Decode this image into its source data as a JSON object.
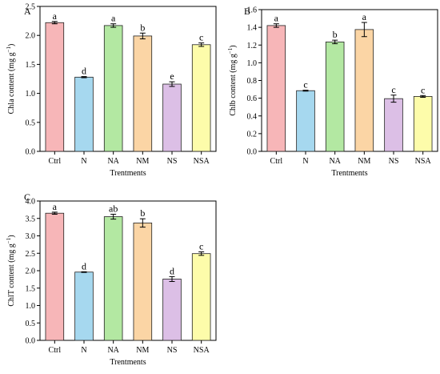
{
  "figure": {
    "colors": {
      "Ctrl": "#f7b6b8",
      "N": "#a6d8ef",
      "NA": "#b3e8a2",
      "NM": "#fbd5a5",
      "NS": "#dcbfe6",
      "NSA": "#fdfcaa",
      "edge": "#222222"
    }
  },
  "chart_data": [
    {
      "panel": "A",
      "type": "bar",
      "categories": [
        "Ctrl",
        "N",
        "NA",
        "NM",
        "NS",
        "NSA"
      ],
      "values": [
        2.22,
        1.28,
        2.17,
        1.99,
        1.16,
        1.84
      ],
      "errors": [
        0.02,
        0.01,
        0.03,
        0.05,
        0.04,
        0.03
      ],
      "letters": [
        "a",
        "d",
        "a",
        "b",
        "e",
        "c"
      ],
      "xlabel": "Trentments",
      "ylabel": "Chla content (mg g−1)",
      "ylim": [
        0,
        2.5
      ],
      "yticks": [
        "0.0",
        "0.5",
        "1.0",
        "1.5",
        "2.0",
        "2.5"
      ]
    },
    {
      "panel": "B",
      "type": "bar",
      "categories": [
        "Ctrl",
        "N",
        "NA",
        "NM",
        "NS",
        "NSA"
      ],
      "values": [
        1.42,
        0.685,
        1.235,
        1.375,
        0.595,
        0.62
      ],
      "errors": [
        0.02,
        0.005,
        0.02,
        0.08,
        0.04,
        0.01
      ],
      "letters": [
        "a",
        "c",
        "b",
        "a",
        "c",
        "c"
      ],
      "xlabel": "Trentments",
      "ylabel": "Chlb content (mg g−1)",
      "ylim": [
        0,
        1.6
      ],
      "yticks": [
        "0.0",
        "0.2",
        "0.4",
        "0.6",
        "0.8",
        "1.0",
        "1.2",
        "1.4",
        "1.6"
      ]
    },
    {
      "panel": "C",
      "type": "bar",
      "categories": [
        "Ctrl",
        "N",
        "NA",
        "NM",
        "NS",
        "NSA"
      ],
      "values": [
        3.65,
        1.96,
        3.55,
        3.37,
        1.76,
        2.49
      ],
      "errors": [
        0.03,
        0.01,
        0.07,
        0.12,
        0.07,
        0.05
      ],
      "letters": [
        "a",
        "d",
        "ab",
        "b",
        "d",
        "c"
      ],
      "xlabel": "Trentments",
      "ylabel": "ChlT content (mg g−1)",
      "ylim": [
        0,
        4.0
      ],
      "yticks": [
        "0.0",
        "0.5",
        "1.0",
        "1.5",
        "2.0",
        "2.5",
        "3.0",
        "3.5",
        "4.0"
      ]
    }
  ]
}
